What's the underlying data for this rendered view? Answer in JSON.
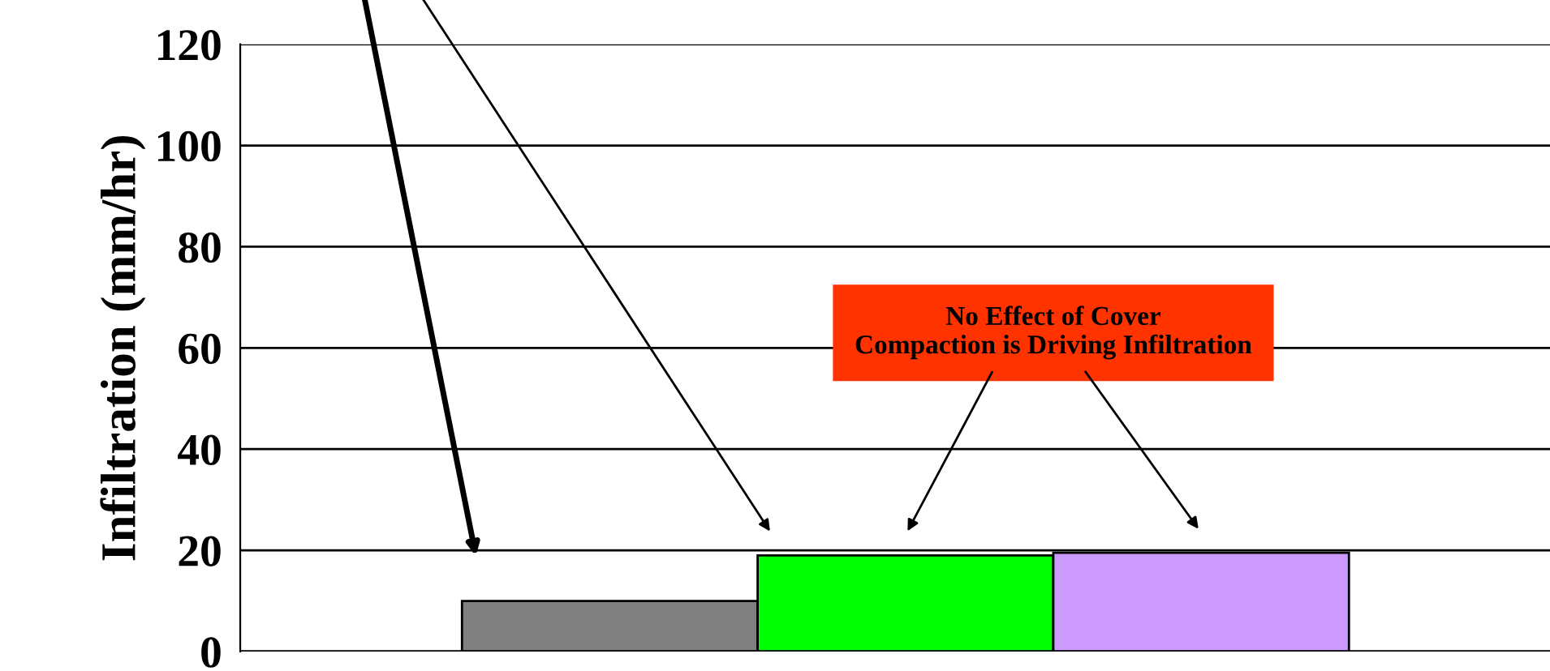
{
  "chart_data": {
    "type": "bar",
    "ylabel": "Infiltration (mm/hr)",
    "categories": [
      null,
      null,
      null
    ],
    "values": [
      10,
      19,
      19.5
    ],
    "colors": [
      "#808080",
      "#00ff00",
      "#cc99ff"
    ],
    "ylim": [
      0,
      120
    ],
    "yticks": [
      0,
      20,
      40,
      60,
      80,
      100,
      120
    ],
    "grid": "y",
    "annotations": [
      "No Effect of Cover\nCompaction is Driving Infiltration"
    ]
  }
}
